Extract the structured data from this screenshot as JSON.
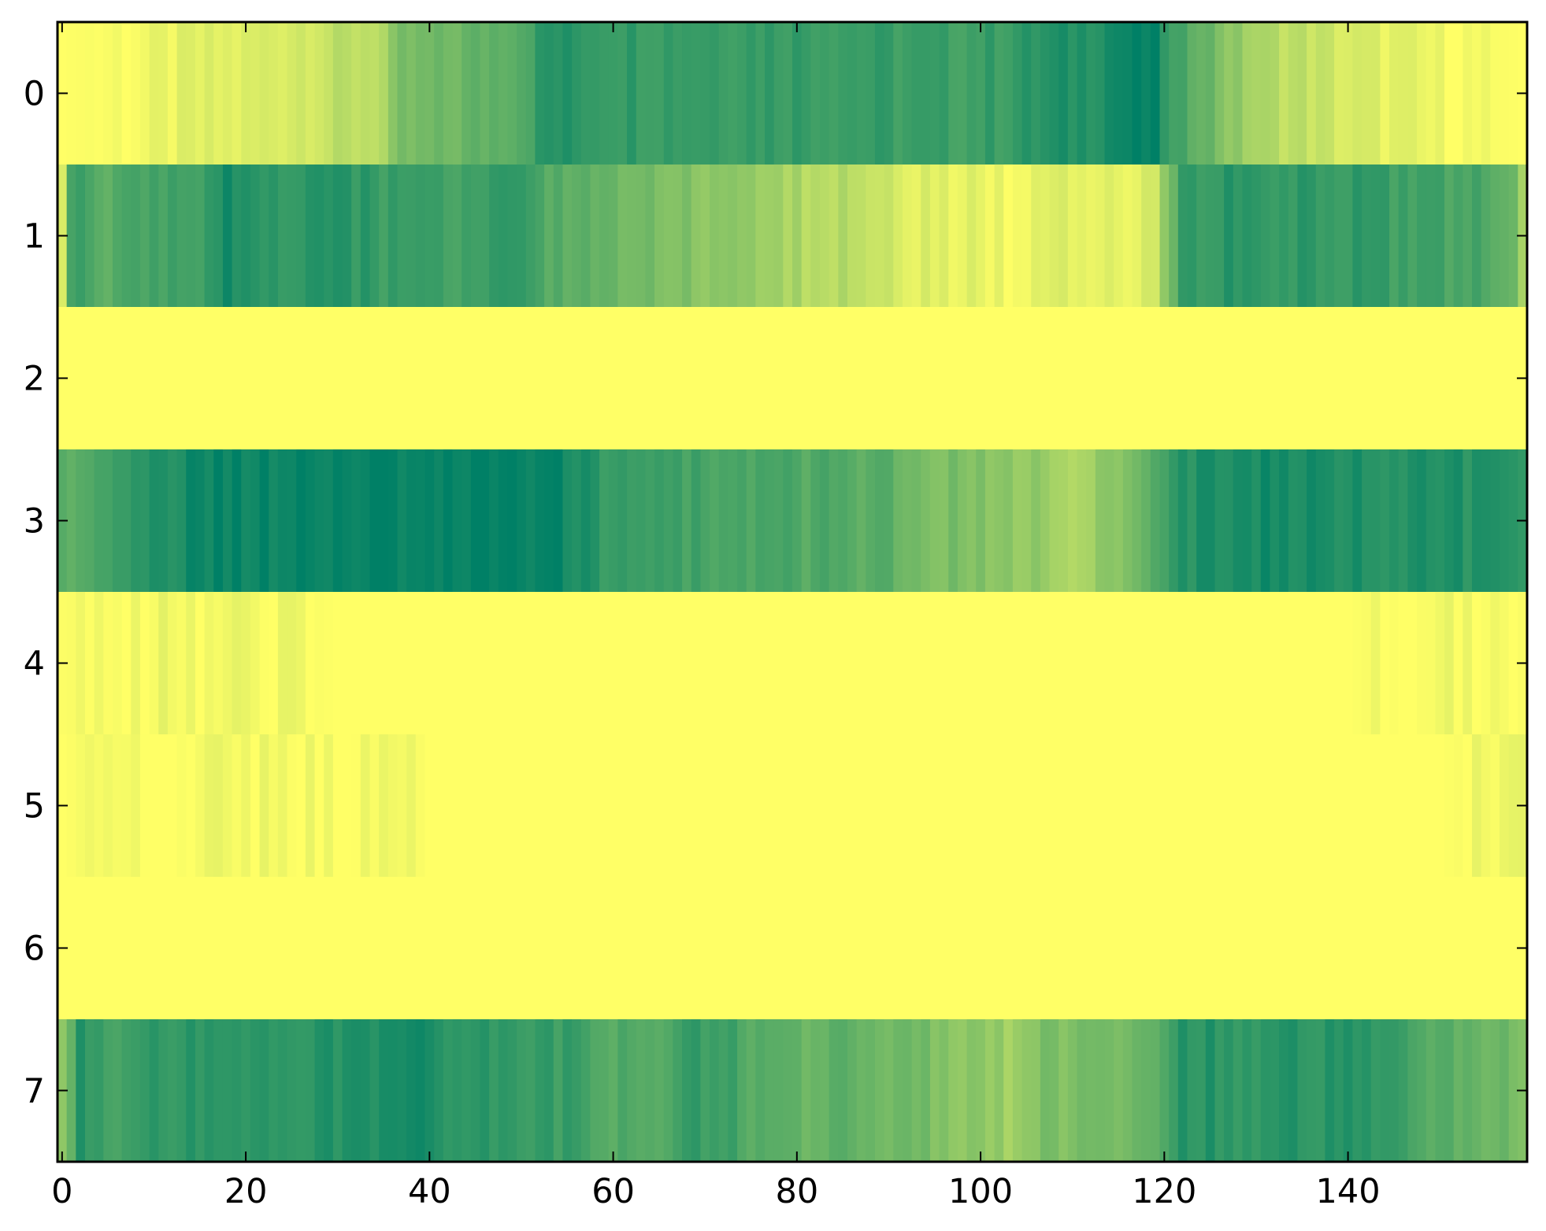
{
  "chart_data": {
    "type": "heatmap",
    "title": "",
    "xlabel": "",
    "ylabel": "",
    "colormap": "summer_r",
    "colormap_endpoints": {
      "low": "#ffff66",
      "high": "#008066"
    },
    "value_range": [
      0,
      1
    ],
    "x_range": [
      -0.5,
      159.5
    ],
    "y_range": [
      -0.5,
      7.5
    ],
    "n_columns": 160,
    "rows": [
      0,
      1,
      2,
      3,
      4,
      5,
      6,
      7
    ],
    "x_ticks": [
      0,
      20,
      40,
      60,
      80,
      100,
      120,
      140
    ],
    "y_ticks": [
      0,
      1,
      2,
      3,
      4,
      5,
      6,
      7
    ],
    "grid": false,
    "row_profiles": [
      {
        "row": 0,
        "knots": [
          [
            0,
            0.0
          ],
          [
            5,
            0.03
          ],
          [
            10,
            0.05
          ],
          [
            14,
            0.1
          ],
          [
            20,
            0.12
          ],
          [
            26,
            0.2
          ],
          [
            31,
            0.25
          ],
          [
            35,
            0.3
          ],
          [
            37,
            0.5
          ],
          [
            42,
            0.55
          ],
          [
            46,
            0.62
          ],
          [
            50,
            0.7
          ],
          [
            53,
            0.85
          ],
          [
            58,
            0.82
          ],
          [
            65,
            0.8
          ],
          [
            72,
            0.8
          ],
          [
            80,
            0.8
          ],
          [
            88,
            0.78
          ],
          [
            95,
            0.75
          ],
          [
            102,
            0.78
          ],
          [
            108,
            0.85
          ],
          [
            112,
            0.88
          ],
          [
            115,
            0.95
          ],
          [
            119,
            0.97
          ],
          [
            121,
            0.7
          ],
          [
            124,
            0.65
          ],
          [
            127,
            0.45
          ],
          [
            131,
            0.3
          ],
          [
            135,
            0.25
          ],
          [
            140,
            0.15
          ],
          [
            145,
            0.1
          ],
          [
            150,
            0.05
          ],
          [
            154,
            0.03
          ],
          [
            159,
            0.0
          ]
        ]
      },
      {
        "row": 1,
        "knots": [
          [
            0,
            0.1
          ],
          [
            1,
            0.75
          ],
          [
            3,
            0.7
          ],
          [
            6,
            0.65
          ],
          [
            10,
            0.7
          ],
          [
            14,
            0.72
          ],
          [
            18,
            0.9
          ],
          [
            22,
            0.85
          ],
          [
            26,
            0.8
          ],
          [
            30,
            0.85
          ],
          [
            34,
            0.8
          ],
          [
            38,
            0.72
          ],
          [
            42,
            0.75
          ],
          [
            46,
            0.78
          ],
          [
            50,
            0.82
          ],
          [
            53,
            0.65
          ],
          [
            58,
            0.6
          ],
          [
            62,
            0.55
          ],
          [
            66,
            0.5
          ],
          [
            70,
            0.45
          ],
          [
            74,
            0.4
          ],
          [
            78,
            0.35
          ],
          [
            82,
            0.3
          ],
          [
            86,
            0.28
          ],
          [
            89,
            0.2
          ],
          [
            92,
            0.15
          ],
          [
            95,
            0.1
          ],
          [
            98,
            0.12
          ],
          [
            100,
            0.08
          ],
          [
            104,
            0.06
          ],
          [
            108,
            0.1
          ],
          [
            112,
            0.12
          ],
          [
            116,
            0.1
          ],
          [
            119,
            0.15
          ],
          [
            120,
            0.4
          ],
          [
            122,
            0.8
          ],
          [
            126,
            0.82
          ],
          [
            130,
            0.85
          ],
          [
            134,
            0.8
          ],
          [
            138,
            0.82
          ],
          [
            142,
            0.8
          ],
          [
            146,
            0.75
          ],
          [
            150,
            0.72
          ],
          [
            154,
            0.7
          ],
          [
            157,
            0.65
          ],
          [
            159,
            0.4
          ]
        ]
      },
      {
        "row": 2,
        "knots": [
          [
            0,
            0.0
          ],
          [
            159,
            0.0
          ]
        ]
      },
      {
        "row": 3,
        "knots": [
          [
            0,
            0.62
          ],
          [
            2,
            0.68
          ],
          [
            6,
            0.75
          ],
          [
            10,
            0.85
          ],
          [
            16,
            0.95
          ],
          [
            25,
            0.97
          ],
          [
            35,
            0.96
          ],
          [
            45,
            0.98
          ],
          [
            54,
            0.98
          ],
          [
            58,
            0.82
          ],
          [
            62,
            0.78
          ],
          [
            66,
            0.75
          ],
          [
            70,
            0.72
          ],
          [
            74,
            0.7
          ],
          [
            78,
            0.7
          ],
          [
            82,
            0.68
          ],
          [
            86,
            0.65
          ],
          [
            90,
            0.62
          ],
          [
            94,
            0.55
          ],
          [
            98,
            0.5
          ],
          [
            102,
            0.45
          ],
          [
            106,
            0.42
          ],
          [
            110,
            0.35
          ],
          [
            113,
            0.4
          ],
          [
            116,
            0.55
          ],
          [
            119,
            0.7
          ],
          [
            122,
            0.85
          ],
          [
            126,
            0.9
          ],
          [
            130,
            0.92
          ],
          [
            134,
            0.88
          ],
          [
            138,
            0.9
          ],
          [
            142,
            0.88
          ],
          [
            146,
            0.85
          ],
          [
            150,
            0.87
          ],
          [
            154,
            0.85
          ],
          [
            159,
            0.86
          ]
        ]
      },
      {
        "row": 4,
        "knots": [
          [
            0,
            0.05
          ],
          [
            1,
            0.02
          ],
          [
            4,
            0.06
          ],
          [
            7,
            0.05
          ],
          [
            10,
            0.06
          ],
          [
            15,
            0.03
          ],
          [
            18,
            0.05
          ],
          [
            25,
            0.04
          ],
          [
            30,
            0.0
          ],
          [
            140,
            0.0
          ],
          [
            144,
            0.04
          ],
          [
            148,
            0.02
          ],
          [
            151,
            0.05
          ],
          [
            155,
            0.04
          ],
          [
            159,
            0.02
          ]
        ]
      },
      {
        "row": 5,
        "knots": [
          [
            0,
            0.0
          ],
          [
            3,
            0.04
          ],
          [
            6,
            0.05
          ],
          [
            9,
            0.04
          ],
          [
            12,
            0.03
          ],
          [
            18,
            0.05
          ],
          [
            23,
            0.04
          ],
          [
            29,
            0.03
          ],
          [
            34,
            0.02
          ],
          [
            38,
            0.05
          ],
          [
            40,
            0.0
          ],
          [
            150,
            0.0
          ],
          [
            153,
            0.03
          ],
          [
            156,
            0.06
          ],
          [
            159,
            0.04
          ]
        ]
      },
      {
        "row": 6,
        "knots": [
          [
            0,
            0.0
          ],
          [
            159,
            0.0
          ]
        ]
      },
      {
        "row": 7,
        "knots": [
          [
            0,
            0.4
          ],
          [
            2,
            0.85
          ],
          [
            6,
            0.75
          ],
          [
            10,
            0.8
          ],
          [
            14,
            0.82
          ],
          [
            18,
            0.8
          ],
          [
            22,
            0.8
          ],
          [
            26,
            0.85
          ],
          [
            30,
            0.85
          ],
          [
            34,
            0.88
          ],
          [
            38,
            0.9
          ],
          [
            42,
            0.85
          ],
          [
            46,
            0.82
          ],
          [
            50,
            0.8
          ],
          [
            54,
            0.78
          ],
          [
            58,
            0.7
          ],
          [
            62,
            0.65
          ],
          [
            66,
            0.62
          ],
          [
            68,
            0.8
          ],
          [
            72,
            0.75
          ],
          [
            76,
            0.65
          ],
          [
            80,
            0.6
          ],
          [
            84,
            0.62
          ],
          [
            88,
            0.58
          ],
          [
            92,
            0.55
          ],
          [
            96,
            0.5
          ],
          [
            100,
            0.45
          ],
          [
            103,
            0.38
          ],
          [
            106,
            0.5
          ],
          [
            110,
            0.52
          ],
          [
            114,
            0.55
          ],
          [
            118,
            0.55
          ],
          [
            121,
            0.82
          ],
          [
            125,
            0.85
          ],
          [
            129,
            0.82
          ],
          [
            133,
            0.85
          ],
          [
            137,
            0.8
          ],
          [
            140,
            0.92
          ],
          [
            143,
            0.78
          ],
          [
            147,
            0.72
          ],
          [
            151,
            0.65
          ],
          [
            155,
            0.6
          ],
          [
            159,
            0.5
          ]
        ]
      }
    ]
  }
}
